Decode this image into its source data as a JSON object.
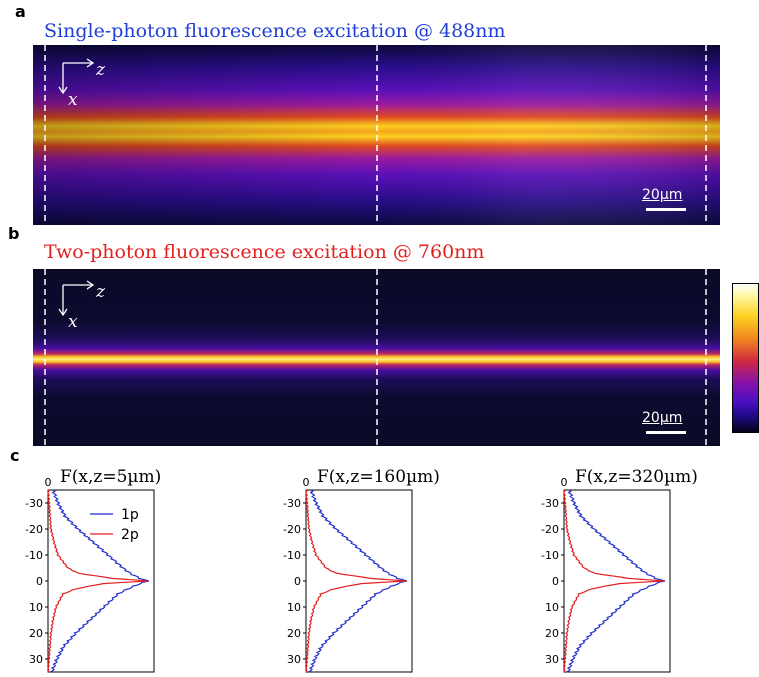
{
  "panel_a": {
    "label": "a",
    "title": "Single-photon fluorescence excitation @ 488nm",
    "title_color": "#1f3fd8",
    "scale_bar": "20µm",
    "axis_z": "z",
    "axis_x": "x"
  },
  "panel_b": {
    "label": "b",
    "title": "Two-photon fluorescence excitation @ 760nm",
    "title_color": "#e32020",
    "scale_bar": "20µm",
    "axis_z": "z",
    "axis_x": "x"
  },
  "panel_c": {
    "label": "c"
  },
  "colormap": "fire (black-purple-red-orange-yellow-white)",
  "chart_data": [
    {
      "type": "line",
      "title": "F(x,z=5µm)",
      "x_tick_top": "0",
      "ylim": [
        35,
        -35
      ],
      "y_ticks": [
        -30,
        -20,
        -10,
        0,
        10,
        20,
        30
      ],
      "series": [
        {
          "name": "1p",
          "color": "#1f2fcc",
          "x": [
            -35,
            -30,
            -25,
            -20,
            -15,
            -10,
            -5,
            -3,
            -1,
            0,
            1,
            3,
            5,
            10,
            15,
            20,
            25,
            30,
            35
          ],
          "values": [
            0.05,
            0.1,
            0.17,
            0.3,
            0.45,
            0.6,
            0.75,
            0.82,
            0.92,
            1.0,
            0.92,
            0.8,
            0.7,
            0.56,
            0.42,
            0.28,
            0.16,
            0.09,
            0.04
          ]
        },
        {
          "name": "2p",
          "color": "#e32020",
          "x": [
            -35,
            -30,
            -25,
            -20,
            -15,
            -10,
            -5,
            -3,
            -1,
            0,
            1,
            3,
            5,
            10,
            15,
            20,
            25,
            30,
            35
          ],
          "values": [
            0.0,
            0.01,
            0.02,
            0.03,
            0.06,
            0.1,
            0.2,
            0.3,
            0.65,
            1.0,
            0.55,
            0.28,
            0.15,
            0.08,
            0.05,
            0.03,
            0.02,
            0.01,
            0.0
          ]
        }
      ],
      "legend": [
        "1p",
        "2p"
      ]
    },
    {
      "type": "line",
      "title": "F(x,z=160µm)",
      "x_tick_top": "0",
      "ylim": [
        35,
        -35
      ],
      "y_ticks": [
        -30,
        -20,
        -10,
        0,
        10,
        20,
        30
      ],
      "series": [
        {
          "name": "1p",
          "color": "#1f2fcc",
          "x": [
            -35,
            -30,
            -25,
            -20,
            -15,
            -10,
            -5,
            -3,
            -1,
            0,
            1,
            3,
            5,
            10,
            15,
            20,
            25,
            30,
            35
          ],
          "values": [
            0.05,
            0.1,
            0.17,
            0.3,
            0.45,
            0.6,
            0.75,
            0.82,
            0.92,
            1.0,
            0.92,
            0.8,
            0.7,
            0.56,
            0.42,
            0.28,
            0.16,
            0.09,
            0.04
          ]
        },
        {
          "name": "2p",
          "color": "#e32020",
          "x": [
            -35,
            -30,
            -25,
            -20,
            -15,
            -10,
            -5,
            -3,
            -1,
            0,
            1,
            3,
            5,
            10,
            15,
            20,
            25,
            30,
            35
          ],
          "values": [
            0.0,
            0.01,
            0.02,
            0.03,
            0.06,
            0.1,
            0.2,
            0.3,
            0.65,
            1.0,
            0.55,
            0.28,
            0.15,
            0.08,
            0.05,
            0.03,
            0.02,
            0.01,
            0.0
          ]
        }
      ]
    },
    {
      "type": "line",
      "title": "F(x,z=320µm)",
      "x_tick_top": "0",
      "ylim": [
        35,
        -35
      ],
      "y_ticks": [
        -30,
        -20,
        -10,
        0,
        10,
        20,
        30
      ],
      "series": [
        {
          "name": "1p",
          "color": "#1f2fcc",
          "x": [
            -35,
            -30,
            -25,
            -20,
            -15,
            -10,
            -5,
            -3,
            -1,
            0,
            1,
            3,
            5,
            10,
            15,
            20,
            25,
            30,
            35
          ],
          "values": [
            0.05,
            0.1,
            0.17,
            0.3,
            0.45,
            0.6,
            0.75,
            0.82,
            0.92,
            1.0,
            0.92,
            0.8,
            0.7,
            0.56,
            0.42,
            0.28,
            0.16,
            0.09,
            0.04
          ]
        },
        {
          "name": "2p",
          "color": "#e32020",
          "x": [
            -35,
            -30,
            -25,
            -20,
            -15,
            -10,
            -5,
            -3,
            -1,
            0,
            1,
            3,
            5,
            10,
            15,
            20,
            25,
            30,
            35
          ],
          "values": [
            0.0,
            0.01,
            0.02,
            0.03,
            0.06,
            0.1,
            0.2,
            0.3,
            0.65,
            1.0,
            0.55,
            0.28,
            0.15,
            0.08,
            0.05,
            0.03,
            0.02,
            0.01,
            0.0
          ]
        }
      ]
    }
  ]
}
